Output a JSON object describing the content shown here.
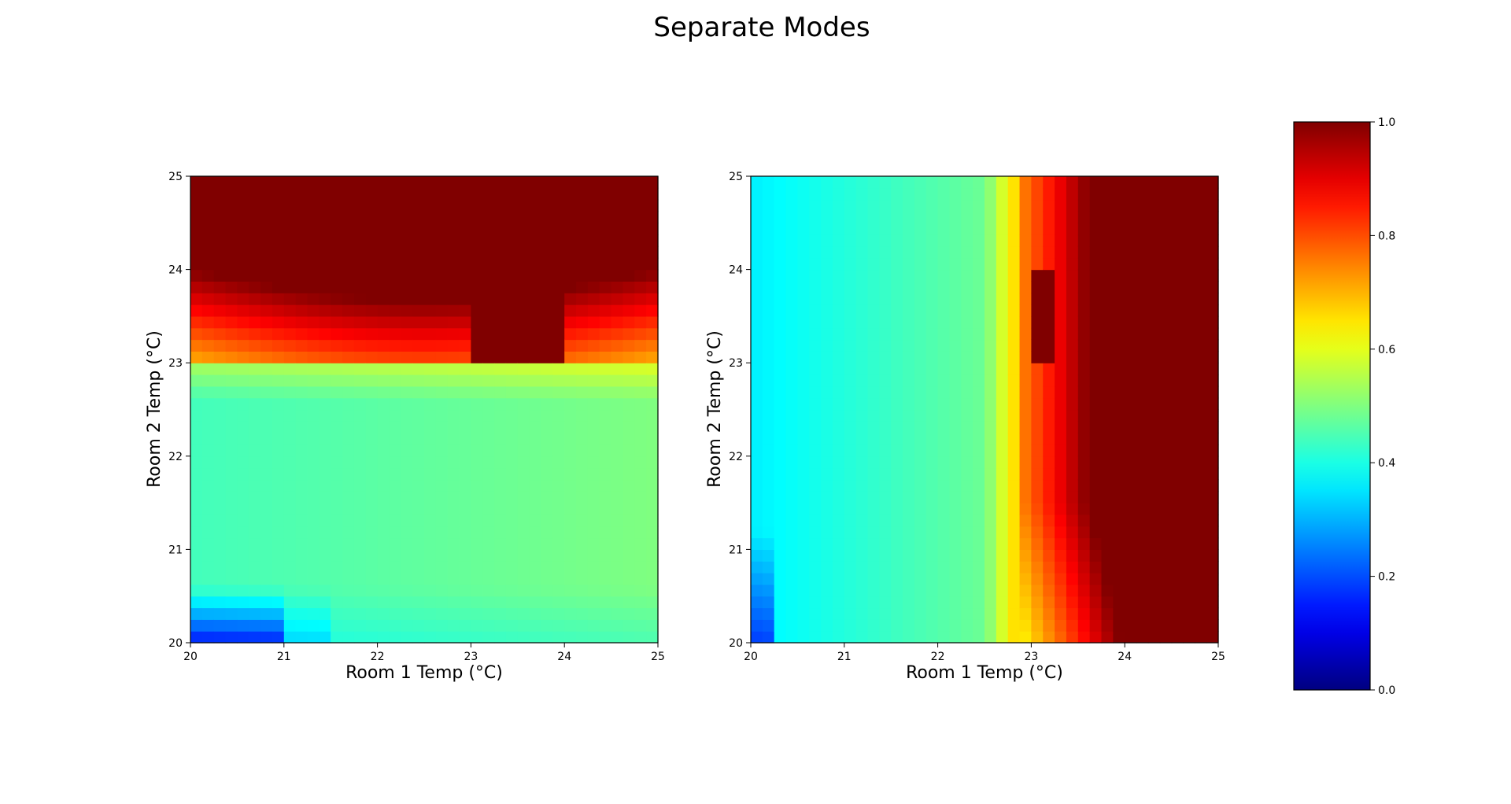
{
  "figure": {
    "title": "Separate Modes"
  },
  "chart_data": [
    {
      "type": "heatmap",
      "xlabel": "Room 1 Temp (°C)",
      "ylabel": "Room 2 Temp (°C)",
      "xlim": [
        20,
        25
      ],
      "ylim": [
        20,
        25
      ],
      "xticks": [
        "20",
        "21",
        "22",
        "23",
        "24",
        "25"
      ],
      "yticks": [
        "20",
        "21",
        "22",
        "23",
        "24",
        "25"
      ],
      "grid": false,
      "x_bins": 40,
      "y_bins": 40,
      "colormap": "jet",
      "pattern": "separate_mode_room2_dominant",
      "description_values": {
        "low_corner_min": 0.12,
        "middle_band": 0.45,
        "transition_y": 23.0,
        "upper_region_max": 1.0
      }
    },
    {
      "type": "heatmap",
      "xlabel": "Room 1 Temp (°C)",
      "ylabel": "Room 2 Temp (°C)",
      "xlim": [
        20,
        25
      ],
      "ylim": [
        20,
        25
      ],
      "xticks": [
        "20",
        "21",
        "22",
        "23",
        "24",
        "25"
      ],
      "yticks": [
        "20",
        "21",
        "22",
        "23",
        "24",
        "25"
      ],
      "grid": false,
      "x_bins": 40,
      "y_bins": 40,
      "colormap": "jet",
      "pattern": "separate_mode_room1_dominant",
      "description_values": {
        "low_corner_min": 0.15,
        "middle_band": 0.42,
        "transition_x": 23.0,
        "right_region_max": 1.0
      }
    }
  ],
  "colorbar": {
    "min": 0.0,
    "max": 1.0,
    "ticks": [
      "0.0",
      "0.2",
      "0.4",
      "0.6",
      "0.8",
      "1.0"
    ],
    "colormap": "jet"
  }
}
